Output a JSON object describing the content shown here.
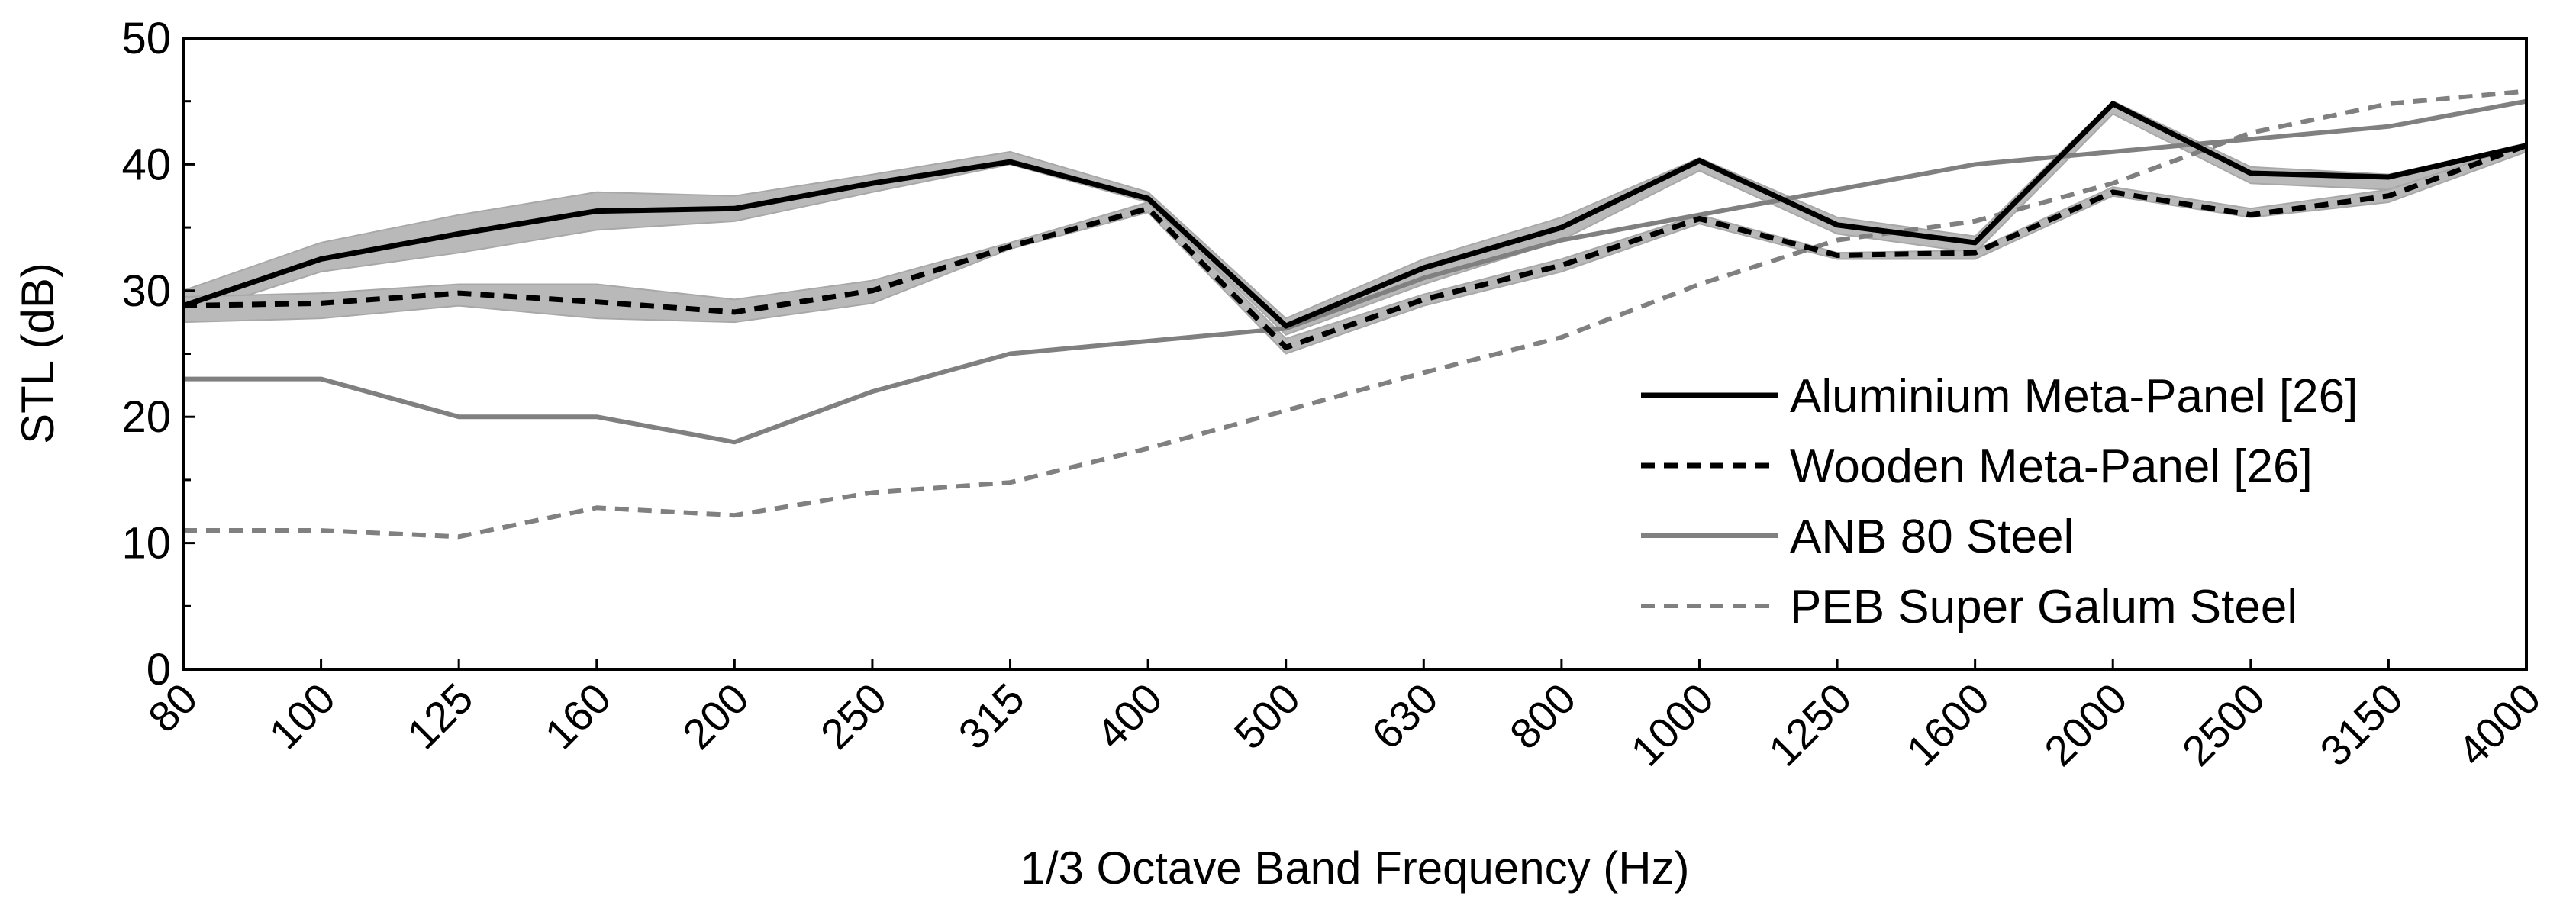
{
  "chart_data": {
    "type": "line",
    "title": "",
    "xlabel": "1/3 Octave Band Frequency (Hz)",
    "ylabel": "STL (dB)",
    "ylim": [
      0,
      50
    ],
    "yticks": [
      0,
      10,
      20,
      30,
      40,
      50
    ],
    "grid": false,
    "legend_position": "bottom-right",
    "categories": [
      "80",
      "100",
      "125",
      "160",
      "200",
      "250",
      "315",
      "400",
      "500",
      "630",
      "800",
      "1000",
      "1250",
      "1600",
      "2000",
      "2500",
      "3150",
      "4000"
    ],
    "bands": [
      {
        "name": "Aluminium Meta-Panel [26] range",
        "color": "#b9b9b9",
        "lower": [
          28.0,
          31.5,
          33.0,
          34.8,
          35.5,
          37.8,
          40.0,
          37.0,
          26.5,
          30.5,
          34.0,
          39.5,
          34.5,
          33.0,
          44.0,
          38.5,
          38.0,
          41.0
        ],
        "upper": [
          30.0,
          33.8,
          36.0,
          37.8,
          37.5,
          39.2,
          41.0,
          37.8,
          27.8,
          32.5,
          35.8,
          40.5,
          35.8,
          34.3,
          45.0,
          39.8,
          39.2,
          41.5
        ]
      },
      {
        "name": "Wooden Meta-Panel [26] range",
        "color": "#b9b9b9",
        "lower": [
          27.5,
          27.8,
          28.8,
          27.8,
          27.5,
          29.0,
          33.3,
          36.2,
          25.0,
          28.8,
          31.5,
          35.3,
          32.5,
          32.5,
          37.5,
          35.8,
          37.0,
          41.0
        ],
        "upper": [
          29.5,
          29.8,
          30.5,
          30.5,
          29.3,
          30.8,
          33.8,
          37.0,
          26.2,
          29.7,
          32.5,
          36.0,
          33.0,
          33.2,
          38.2,
          36.5,
          38.0,
          41.6
        ]
      }
    ],
    "series": [
      {
        "name": "Aluminium Meta-Panel [26]",
        "color": "#000000",
        "style": "solid",
        "values": [
          28.8,
          32.5,
          34.5,
          36.3,
          36.5,
          38.5,
          40.2,
          37.3,
          27.2,
          31.8,
          35.0,
          40.3,
          35.2,
          33.8,
          44.8,
          39.3,
          39.0,
          41.5
        ]
      },
      {
        "name": "Wooden Meta-Panel [26]",
        "color": "#000000",
        "style": "dashed",
        "values": [
          28.8,
          29.0,
          29.8,
          29.1,
          28.3,
          30.0,
          33.5,
          36.5,
          25.5,
          29.3,
          32.0,
          35.7,
          32.8,
          33.0,
          37.8,
          36.0,
          37.5,
          41.5
        ]
      },
      {
        "name": "ANB 80 Steel",
        "color": "#808080",
        "style": "solid",
        "values": [
          23.0,
          23.0,
          20.0,
          20.0,
          18.0,
          22.0,
          25.0,
          26.0,
          27.0,
          31.0,
          34.0,
          36.0,
          38.0,
          40.0,
          41.0,
          42.0,
          43.0,
          45.0
        ]
      },
      {
        "name": "PEB Super Galum Steel",
        "color": "#808080",
        "style": "dashed",
        "values": [
          11.0,
          11.0,
          10.5,
          12.8,
          12.2,
          14.0,
          14.8,
          17.5,
          20.5,
          23.5,
          26.3,
          30.5,
          34.0,
          35.5,
          38.5,
          42.5,
          44.8,
          45.8
        ]
      }
    ]
  }
}
